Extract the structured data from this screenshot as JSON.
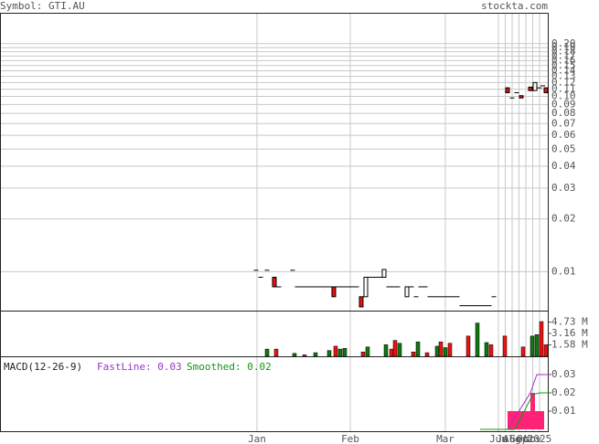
{
  "header": {
    "symbol": "Symbol: GTI.AU",
    "site": "stockta.com"
  },
  "chart_data": [
    {
      "type": "candlestick",
      "log_scale": true,
      "grid": true,
      "up_color": "#ffffff",
      "down_color": "#ee1111",
      "xlim": [
        -55,
        65
      ],
      "xticks": [
        {
          "value": 1.2,
          "label": "Jan"
        },
        {
          "value": 21.6,
          "label": "Feb"
        },
        {
          "value": 42.4,
          "label": "Mar"
        },
        {
          "value": 54,
          "label": "Jun"
        },
        {
          "value": 55.5,
          "label": "Jul"
        },
        {
          "value": 57,
          "label": "Aug"
        },
        {
          "value": 58.5,
          "label": "Sep"
        },
        {
          "value": 60,
          "label": "Oct"
        },
        {
          "value": 61.5,
          "label": "Nov"
        },
        {
          "value": 63,
          "label": "2025"
        }
      ],
      "ylim": [
        0.006,
        0.3
      ],
      "yticks": [
        {
          "value": 0.2,
          "label": "0.20"
        },
        0.19,
        0.18,
        0.17,
        0.16,
        0.15,
        0.14,
        0.13,
        0.12,
        0.11,
        {
          "value": 0.1,
          "label": "0.10"
        },
        0.09,
        0.08,
        0.07,
        0.06,
        0.05,
        0.04,
        0.03,
        0.02,
        0.01
      ],
      "x": [
        1,
        2,
        3.4,
        5,
        6,
        9,
        10,
        11,
        12,
        13,
        14,
        15,
        16,
        17,
        18,
        19,
        20,
        21,
        22,
        23,
        24,
        25,
        26,
        27,
        28,
        29,
        30,
        31,
        32,
        34,
        35,
        36,
        37,
        38,
        39,
        40,
        41,
        42,
        43,
        44,
        45,
        46,
        47,
        48,
        49,
        50,
        51,
        52,
        53,
        56,
        57,
        58,
        59,
        61,
        62,
        63,
        63.7,
        64.4
      ],
      "open": [
        0.0102,
        0.0093,
        0.0102,
        0.0093,
        0.0082,
        0.0102,
        0.0082,
        0.0082,
        0.0082,
        0.0082,
        0.0082,
        0.0082,
        0.0082,
        0.0082,
        0.0082,
        0.0082,
        0.0082,
        0.0082,
        0.0082,
        0.0082,
        0.0072,
        0.0072,
        0.0093,
        0.0093,
        0.0093,
        0.0093,
        0.0082,
        0.0082,
        0.0082,
        0.0072,
        0.0082,
        0.0072,
        0.0082,
        0.0082,
        0.0072,
        0.0072,
        0.0072,
        0.0072,
        0.0072,
        0.0072,
        0.0072,
        0.0064,
        0.0064,
        0.0064,
        0.0064,
        0.0064,
        0.0064,
        0.0064,
        0.0072,
        0.112,
        0.098,
        0.105,
        0.101,
        0.113,
        0.108,
        0.112,
        0.115,
        0.112
      ],
      "close": [
        0.0102,
        0.0093,
        0.0102,
        0.0082,
        0.0082,
        0.0102,
        0.0082,
        0.0082,
        0.0082,
        0.0082,
        0.0082,
        0.0082,
        0.0082,
        0.0082,
        0.0072,
        0.0082,
        0.0082,
        0.0082,
        0.0082,
        0.0082,
        0.0063,
        0.0093,
        0.0093,
        0.0093,
        0.0093,
        0.0103,
        0.0082,
        0.0082,
        0.0082,
        0.0082,
        0.0082,
        0.0072,
        0.0082,
        0.0082,
        0.0072,
        0.0072,
        0.0072,
        0.0072,
        0.0072,
        0.0072,
        0.0072,
        0.0064,
        0.0064,
        0.0064,
        0.0064,
        0.0064,
        0.0064,
        0.0064,
        0.0072,
        0.105,
        0.098,
        0.105,
        0.098,
        0.108,
        0.12,
        0.112,
        0.115,
        0.105
      ]
    },
    {
      "type": "bar",
      "ylim": [
        0,
        6320000
      ],
      "yticks": [
        {
          "value": 4730000,
          "label": "4.73 M"
        },
        {
          "value": 3160000,
          "label": "3.16 M"
        },
        {
          "value": 1580000,
          "label": "1.58 M"
        }
      ],
      "x": [
        3.4,
        5.4,
        9.4,
        11.6,
        14,
        17,
        18.4,
        19.4,
        20.4,
        24.4,
        25.4,
        29.4,
        30.6,
        31.4,
        32.4,
        35.4,
        36.4,
        38.4,
        40.6,
        41.4,
        42.4,
        43.4,
        47.4,
        49.4,
        51.4,
        52.4,
        55.4,
        59.4,
        61.4,
        62.4,
        63.4,
        64.4
      ],
      "values": [
        1000000,
        1000000,
        400000,
        200000,
        500000,
        800000,
        1400000,
        1000000,
        1100000,
        600000,
        1300000,
        1600000,
        1000000,
        2200000,
        1800000,
        600000,
        2000000,
        500000,
        1400000,
        2000000,
        1200000,
        1800000,
        2800000,
        4600000,
        1900000,
        1600000,
        2800000,
        1300000,
        2800000,
        3000000,
        4800000,
        1600000
      ],
      "colors": [
        "#117711",
        "#ee1111",
        "#117711",
        "#ee1111",
        "#117711",
        "#117711",
        "#ee1111",
        "#117711",
        "#117711",
        "#ee1111",
        "#117711",
        "#117711",
        "#ee1111",
        "#ee1111",
        "#117711",
        "#ee1111",
        "#117711",
        "#ee1111",
        "#117711",
        "#ee1111",
        "#117711",
        "#ee1111",
        "#ee1111",
        "#117711",
        "#117711",
        "#ee1111",
        "#ee1111",
        "#ee1111",
        "#117711",
        "#117711",
        "#ee1111",
        "#ee1111"
      ]
    },
    {
      "type": "macd",
      "title": "MACD(12-26-9)",
      "ylim": [
        -0.001,
        0.04
      ],
      "yticks": [
        0.03,
        0.02,
        0.01
      ],
      "series": [
        {
          "name": "FastLine: 0.03",
          "color": "#9933cc",
          "x": [
            50,
            56,
            61,
            62.4,
            65
          ],
          "values": [
            0,
            0,
            0.02,
            0.03,
            0.03
          ]
        },
        {
          "name": "Smoothed: 0.02",
          "color": "#119911",
          "x": [
            50,
            57.6,
            61.5,
            63,
            65
          ],
          "values": [
            0,
            0,
            0.019,
            0.02,
            0.02
          ]
        }
      ],
      "histogram": {
        "color": "#ff2277",
        "x": [
          56.5,
          57.5,
          58.5,
          59.5,
          60.5,
          61.5,
          62.5,
          63.5
        ],
        "values": [
          0.01,
          0.01,
          0.01,
          0.01,
          0.01,
          0.02,
          0.01,
          0.01
        ]
      }
    }
  ]
}
